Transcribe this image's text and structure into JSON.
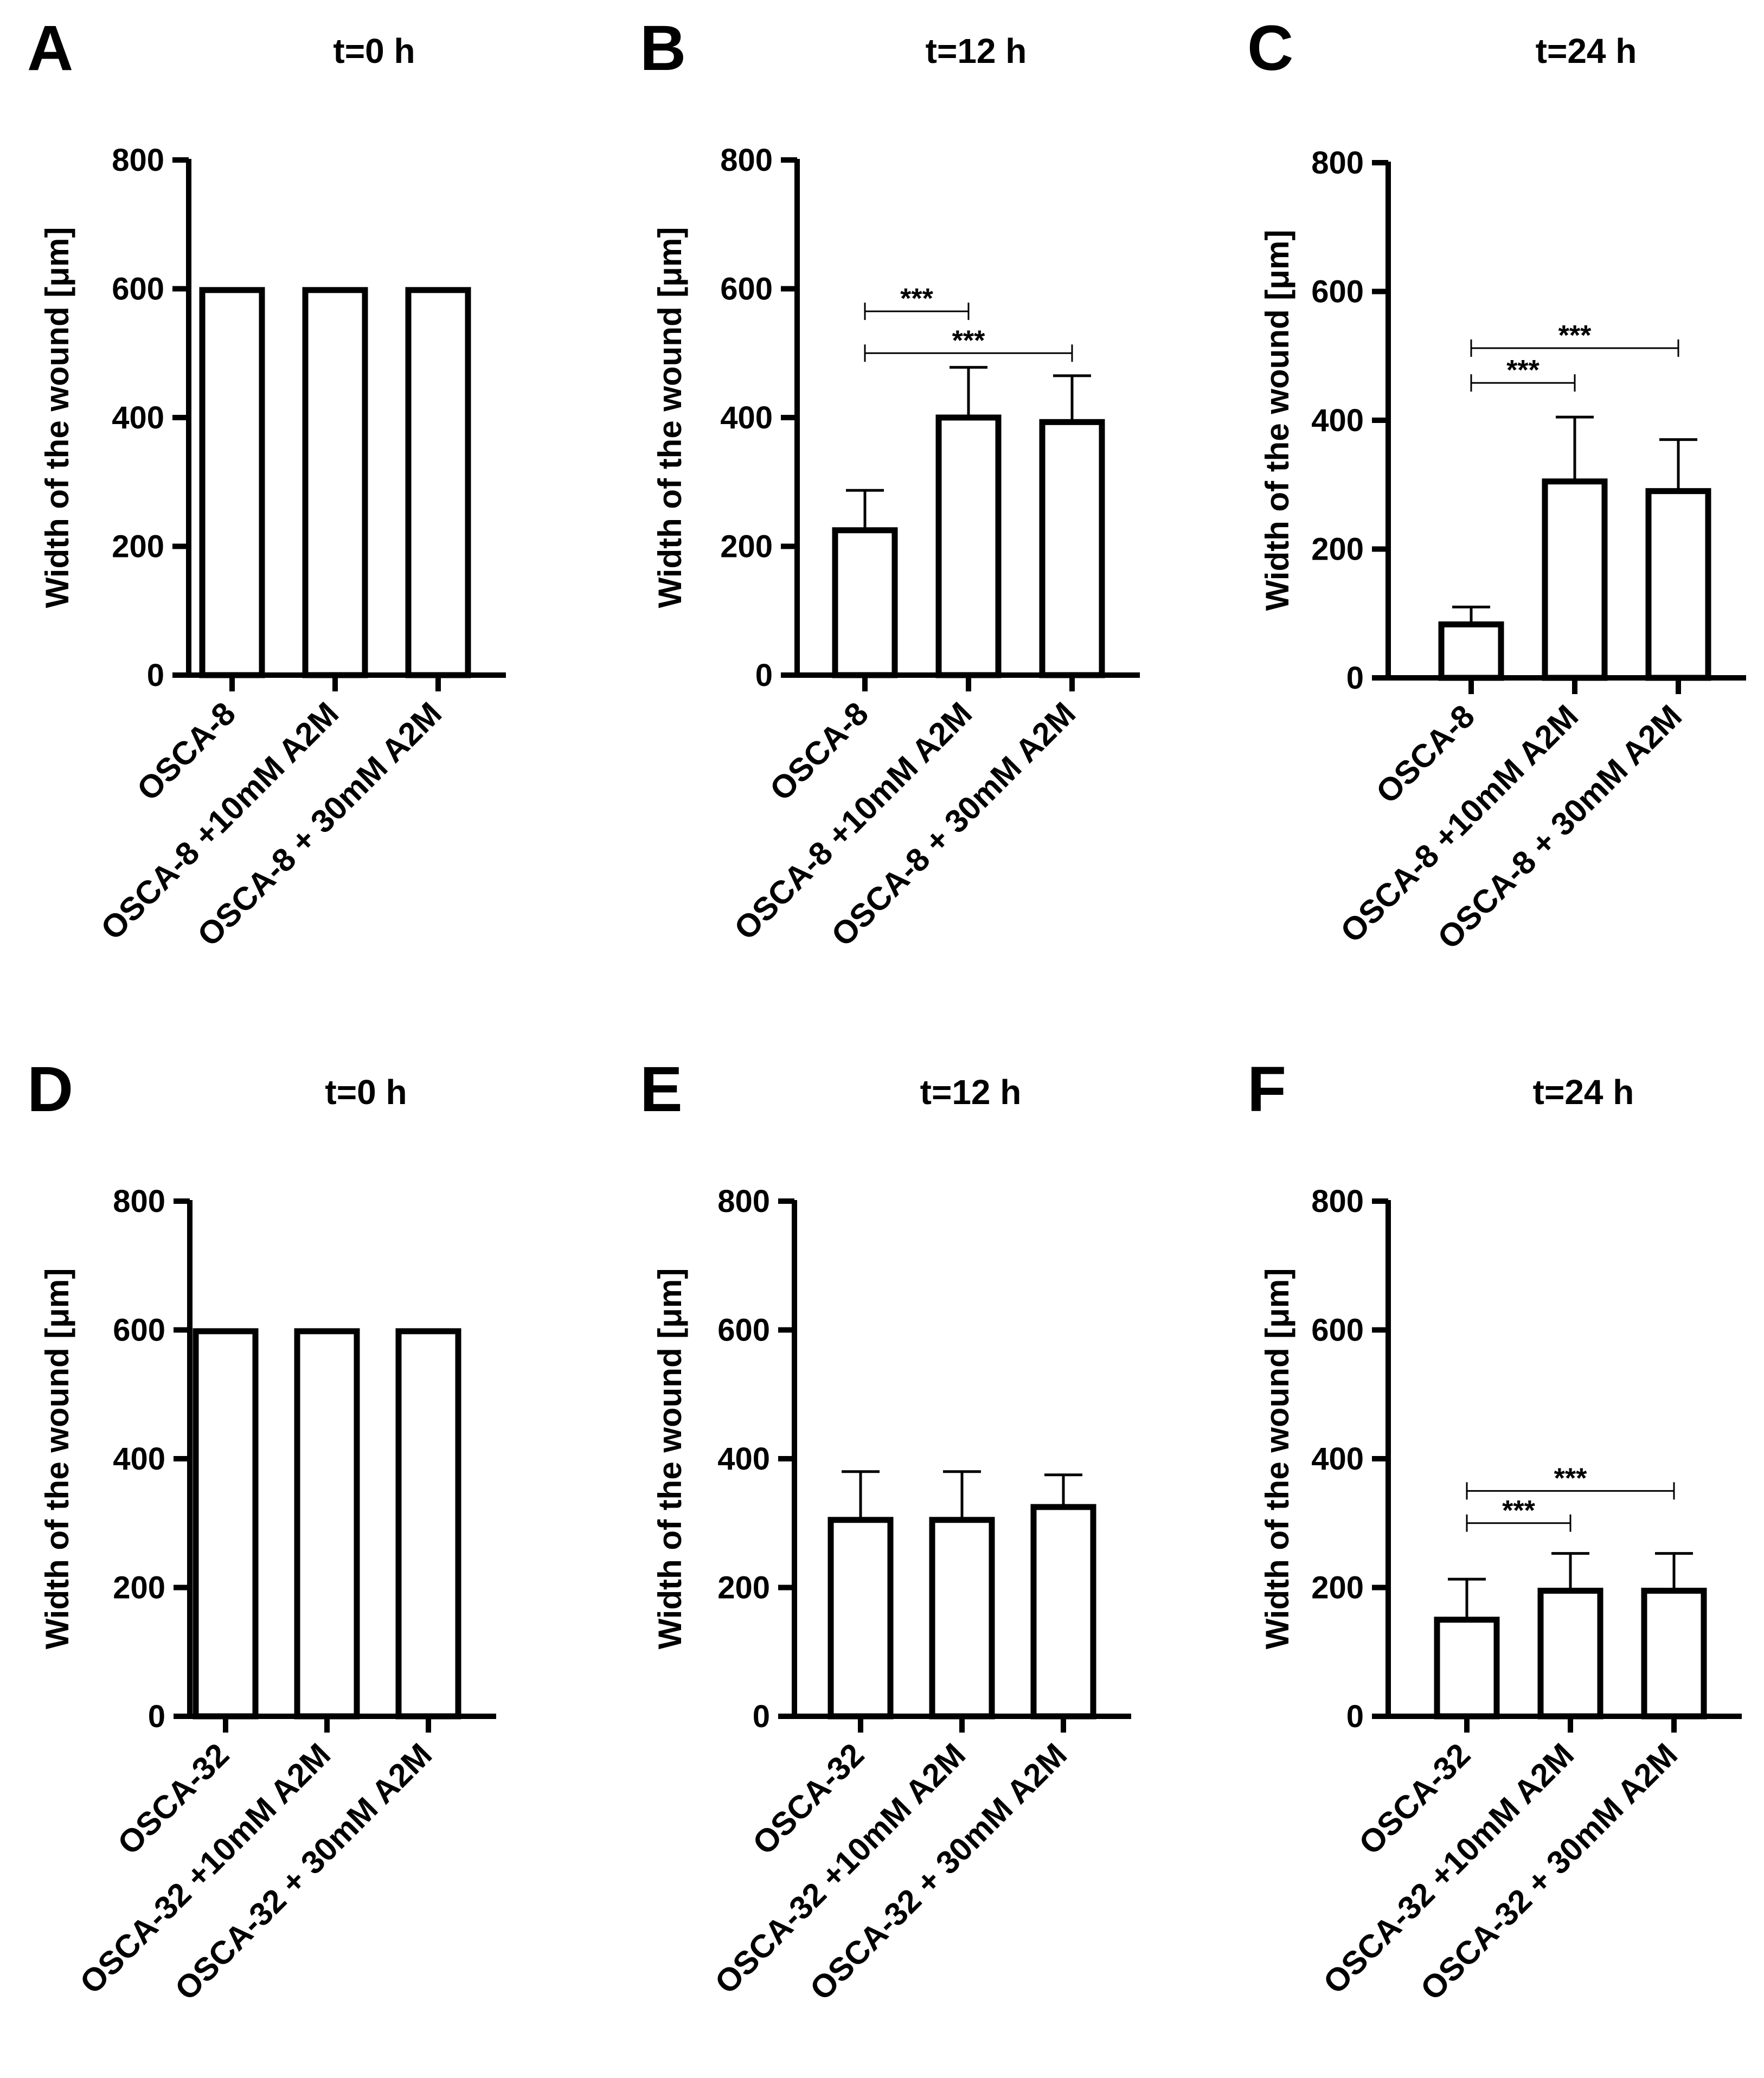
{
  "chart_data": [
    {
      "panel": "A",
      "type": "bar",
      "title": "t=0 h",
      "ylabel": "Width of the wound [μm]",
      "xlabel": "",
      "ylim": [
        0,
        800
      ],
      "yticks": [
        0,
        200,
        400,
        600,
        800
      ],
      "categories": [
        "OSCA-8",
        "OSCA-8 +10mM A2M",
        "OSCA-8 + 30mM A2M"
      ],
      "values": [
        598,
        598,
        598
      ],
      "errors": [
        2,
        2,
        2
      ],
      "significance": []
    },
    {
      "panel": "B",
      "type": "bar",
      "title": "t=12 h",
      "ylabel": "Width of the wound [μm]",
      "xlabel": "",
      "ylim": [
        0,
        800
      ],
      "yticks": [
        0,
        200,
        400,
        600,
        800
      ],
      "categories": [
        "OSCA-8",
        "OSCA-8 +10mM A2M",
        "OSCA-8 + 30mM A2M"
      ],
      "values": [
        225,
        400,
        393
      ],
      "errors": [
        62,
        78,
        72
      ],
      "significance": [
        {
          "from": 0,
          "to": 1,
          "label": "***",
          "y": 565
        },
        {
          "from": 0,
          "to": 2,
          "label": "***",
          "y": 500
        }
      ]
    },
    {
      "panel": "C",
      "type": "bar",
      "title": "t=24 h",
      "ylabel": "Width of the wound [μm]",
      "xlabel": "",
      "ylim": [
        0,
        800
      ],
      "yticks": [
        0,
        200,
        400,
        600,
        800
      ],
      "categories": [
        "OSCA-8",
        "OSCA-8 +10mM A2M",
        "OSCA-8 + 30mM A2M"
      ],
      "values": [
        83,
        305,
        290
      ],
      "errors": [
        27,
        100,
        80
      ],
      "significance": [
        {
          "from": 0,
          "to": 1,
          "label": "***",
          "y": 458
        },
        {
          "from": 0,
          "to": 2,
          "label": "***",
          "y": 512
        }
      ]
    },
    {
      "panel": "D",
      "type": "bar",
      "title": "t=0 h",
      "ylabel": "Width of the wound [μm]",
      "xlabel": "",
      "ylim": [
        0,
        800
      ],
      "yticks": [
        0,
        200,
        400,
        600,
        800
      ],
      "categories": [
        "OSCA-32",
        "OSCA-32 +10mM A2M",
        "OSCA-32 + 30mM A2M"
      ],
      "values": [
        598,
        598,
        598
      ],
      "errors": [
        2,
        2,
        2
      ],
      "significance": []
    },
    {
      "panel": "E",
      "type": "bar",
      "title": "t=12 h",
      "ylabel": "Width of the wound [μm]",
      "xlabel": "",
      "ylim": [
        0,
        800
      ],
      "yticks": [
        0,
        200,
        400,
        600,
        800
      ],
      "categories": [
        "OSCA-32",
        "OSCA-32 +10mM A2M",
        "OSCA-32 + 30mM A2M"
      ],
      "values": [
        305,
        305,
        325
      ],
      "errors": [
        75,
        75,
        50
      ],
      "significance": []
    },
    {
      "panel": "F",
      "type": "bar",
      "title": "t=24 h",
      "ylabel": "Width of the wound [μm]",
      "xlabel": "",
      "ylim": [
        0,
        800
      ],
      "yticks": [
        0,
        200,
        400,
        600,
        800
      ],
      "categories": [
        "OSCA-32",
        "OSCA-32 +10mM A2M",
        "OSCA-32 + 30mM A2M"
      ],
      "values": [
        150,
        195,
        195
      ],
      "errors": [
        63,
        58,
        58
      ],
      "significance": [
        {
          "from": 0,
          "to": 1,
          "label": "***",
          "y": 300
        },
        {
          "from": 0,
          "to": 2,
          "label": "***",
          "y": 350
        }
      ]
    }
  ]
}
